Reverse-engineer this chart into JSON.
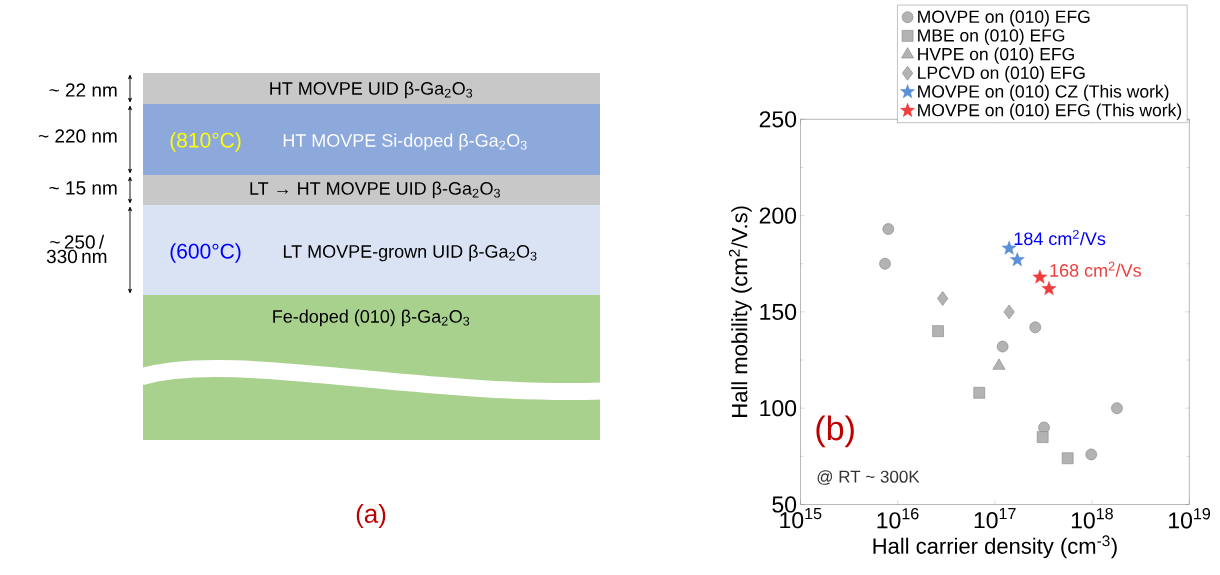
{
  "chart_data": [
    {
      "type": "other",
      "title": "(a)",
      "annotations": [
        "~ 22 nm",
        "~ 220 nm",
        "~ 15 nm",
        "~ 250 / 330 nm",
        "HT MOVPE UID β-Ga$_{2}$O$_{3}$",
        "(810°C)",
        "HT MOVPE Si-doped β-Ga$_{2}$O$_{3}$",
        "LT → HT MOVPE UID β-Ga$_{2}$O$_{3}$",
        "(600°C)",
        "LT MOVPE-grown UID β-Ga$_{2}$O$_{3}$",
        "Fe-doped (010) β-Ga$_{2}$O$_{3}$"
      ]
    },
    {
      "type": "scatter",
      "title": "(b)",
      "xlabel": "Hall carrier density (cm$^{-3}$)",
      "ylabel": "Hall mobility (cm$^{2}$/V.s)",
      "log": "x",
      "xlim": [
        1000000000000000.0,
        1e+19
      ],
      "ylim": [
        50,
        250
      ],
      "xticks": [
        {
          "value": 1000000000000000.0,
          "label": "10$^{15}$"
        },
        {
          "value": 1e+16,
          "label": "10$^{16}$"
        },
        {
          "value": 1e+17,
          "label": "10$^{17}$"
        },
        {
          "value": 1e+18,
          "label": "10$^{18}$"
        },
        {
          "value": 1e+19,
          "label": "10$^{19}$"
        }
      ],
      "yticks": [
        50,
        100,
        150,
        200,
        250
      ],
      "legend": "top right",
      "series": [
        {
          "name": "MOVPE on (010) EFG",
          "color": "#b3b3b3",
          "marker": "circle",
          "x": [
            7400000000000000.0,
            8000000000000000.0,
            1.2e+17,
            2.6e+17,
            3.2e+17,
            9.8e+17,
            1.8e+18
          ],
          "values": [
            175,
            193,
            132,
            142,
            90,
            76,
            100
          ]
        },
        {
          "name": "MBE on (010) EFG",
          "color": "#b3b3b3",
          "marker": "square",
          "x": [
            2.6e+16,
            6.9e+16,
            3.1e+17,
            5.6e+17
          ],
          "values": [
            140,
            108,
            85,
            74
          ]
        },
        {
          "name": "HVPE on (010) EFG",
          "color": "#b3b3b3",
          "marker": "triangle",
          "x": [
            1.1e+17
          ],
          "values": [
            122
          ]
        },
        {
          "name": "LPCVD on (010) EFG",
          "color": "#b3b3b3",
          "marker": "diamond",
          "x": [
            2.9e+16,
            1.4e+17
          ],
          "values": [
            157,
            150
          ]
        },
        {
          "name": "MOVPE on (010) CZ (This work)",
          "color": "#5b8fd6",
          "marker": "star",
          "x": [
            1.4e+17,
            1.7e+17
          ],
          "values": [
            183,
            177
          ]
        },
        {
          "name": "MOVPE on (010) EFG (This work)",
          "color": "#f03c3c",
          "marker": "star",
          "x": [
            2.9e+17,
            3.6e+17
          ],
          "values": [
            168,
            162
          ]
        }
      ],
      "annotations": [
        {
          "text": "184 cm$^{2}$/Vs",
          "x": 1.4e+17,
          "y": 183
        },
        {
          "text": "168 cm$^{2}$/Vs",
          "x": 2.9e+17,
          "y": 168
        },
        "@ RT ~ 300K"
      ]
    }
  ]
}
